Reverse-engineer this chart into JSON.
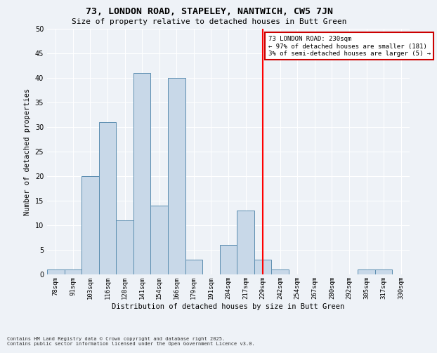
{
  "title1": "73, LONDON ROAD, STAPELEY, NANTWICH, CW5 7JN",
  "title2": "Size of property relative to detached houses in Butt Green",
  "xlabel": "Distribution of detached houses by size in Butt Green",
  "ylabel": "Number of detached properties",
  "bins": [
    "78sqm",
    "91sqm",
    "103sqm",
    "116sqm",
    "128sqm",
    "141sqm",
    "154sqm",
    "166sqm",
    "179sqm",
    "191sqm",
    "204sqm",
    "217sqm",
    "229sqm",
    "242sqm",
    "254sqm",
    "267sqm",
    "280sqm",
    "292sqm",
    "305sqm",
    "317sqm",
    "330sqm"
  ],
  "values": [
    1,
    1,
    20,
    31,
    11,
    41,
    14,
    40,
    3,
    0,
    6,
    13,
    3,
    1,
    0,
    0,
    0,
    0,
    1,
    1,
    0
  ],
  "bar_color": "#c8d8e8",
  "bar_edge_color": "#5b8db0",
  "annotation_title": "73 LONDON ROAD: 230sqm",
  "annotation_line2": "← 97% of detached houses are smaller (181)",
  "annotation_line3": "3% of semi-detached houses are larger (5) →",
  "annotation_box_color": "#cc0000",
  "subject_bin": "229sqm",
  "ylim": [
    0,
    50
  ],
  "yticks": [
    0,
    5,
    10,
    15,
    20,
    25,
    30,
    35,
    40,
    45,
    50
  ],
  "footer1": "Contains HM Land Registry data © Crown copyright and database right 2025.",
  "footer2": "Contains public sector information licensed under the Open Government Licence v3.0.",
  "background_color": "#eef2f7",
  "plot_background": "#eef2f7",
  "title1_fontsize": 9.5,
  "title2_fontsize": 8,
  "ylabel_fontsize": 7.5,
  "xlabel_fontsize": 7.5,
  "tick_fontsize": 6.5,
  "ytick_fontsize": 7,
  "annotation_fontsize": 6.5,
  "footer_fontsize": 5
}
